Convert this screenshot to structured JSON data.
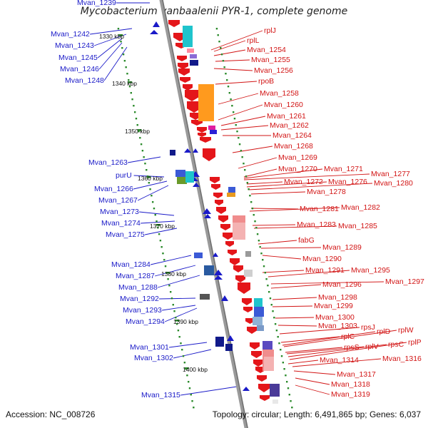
{
  "title": "Mycobacterium vanbaalenii PYR-1, complete genome",
  "accession": "Accession: NC_008726",
  "summary": "Topology: circular; Length: 6,491,865 bp; Genes: 6,037",
  "colors": {
    "backbone": "#8c8c8c",
    "forward_label": "#1a1ac8",
    "reverse_label": "#d21414",
    "tick": "#2a8a2a"
  },
  "kbp_ticks": [
    {
      "label": "1330 kbp"
    },
    {
      "label": "1340 kbp"
    },
    {
      "label": "1350 kbp"
    },
    {
      "label": "1360 kbp"
    },
    {
      "label": "1370 kbp"
    },
    {
      "label": "1380 kbp"
    },
    {
      "label": "1390 kbp"
    },
    {
      "label": "1400 kbp"
    }
  ],
  "forward_labels": [
    "Mvan_1239",
    "Mvan_1242",
    "Mvan_1243",
    "Mvan_1245",
    "Mvan_1246",
    "Mvan_1248",
    "Mvan_1263",
    "purU",
    "Mvan_1266",
    "Mvan_1267",
    "Mvan_1273",
    "Mvan_1274",
    "Mvan_1275",
    "Mvan_1284",
    "Mvan_1287",
    "Mvan_1288",
    "Mvan_1292",
    "Mvan_1293",
    "Mvan_1294",
    "Mvan_1301",
    "Mvan_1302",
    "Mvan_1315"
  ],
  "reverse_labels": [
    "rplJ",
    "rplL",
    "Mvan_1254",
    "Mvan_1255",
    "Mvan_1256",
    "rpoB",
    "Mvan_1258",
    "Mvan_1260",
    "Mvan_1261",
    "Mvan_1262",
    "Mvan_1264",
    "Mvan_1268",
    "Mvan_1269",
    "Mvan_1270",
    "Mvan_1271",
    "Mvan_1277",
    "Mvan_1272",
    "Mvan_1276",
    "Mvan_1280",
    "Mvan_1278",
    "Mvan_1281",
    "Mvan_1282",
    "Mvan_1283",
    "Mvan_1285",
    "fabG",
    "Mvan_1289",
    "Mvan_1290",
    "Mvan_1291",
    "Mvan_1295",
    "Mvan_1297",
    "Mvan_1296",
    "Mvan_1298",
    "Mvan_1299",
    "Mvan_1300",
    "Mvan_1303",
    "rpsJ",
    "rplC",
    "rplD",
    "rplW",
    "rpsS",
    "rplV",
    "rpsC",
    "rplP",
    "Mvan_1314",
    "Mvan_1316",
    "Mvan_1317",
    "Mvan_1318",
    "Mvan_1319"
  ]
}
